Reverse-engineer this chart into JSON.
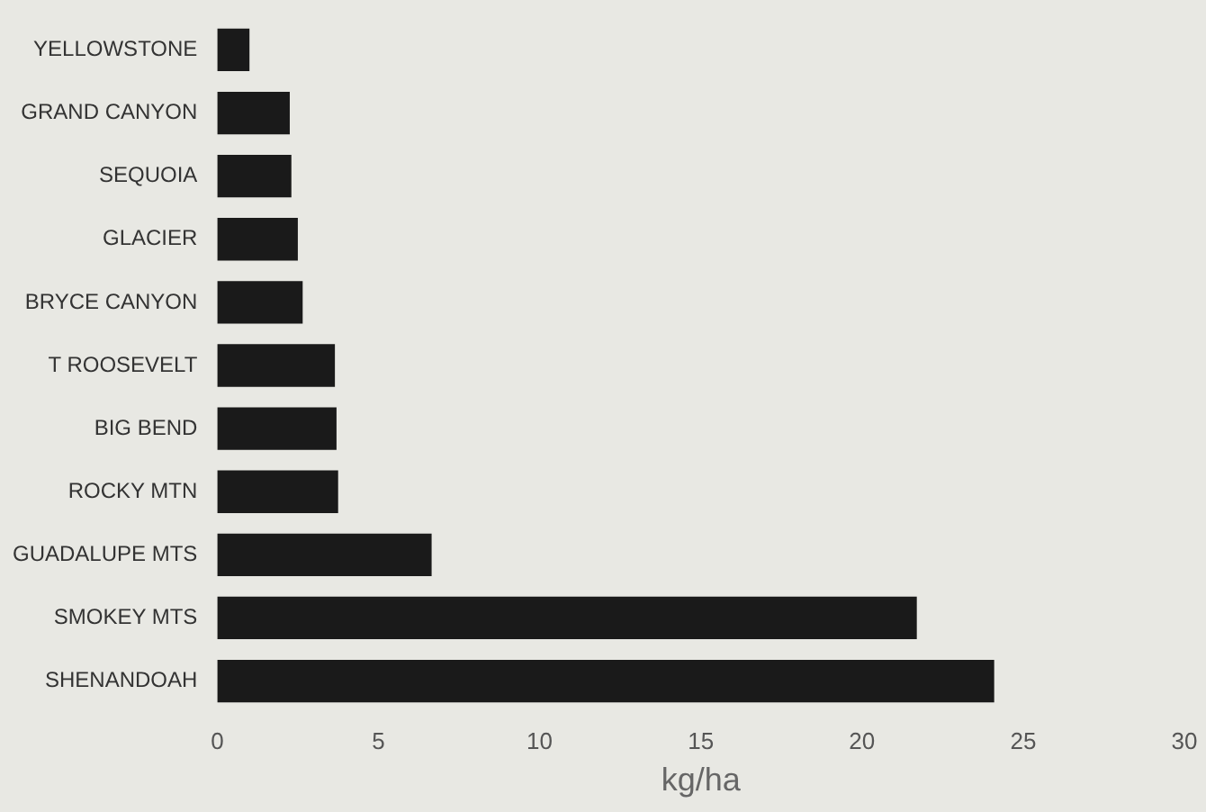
{
  "chart_data": {
    "type": "bar",
    "orientation": "horizontal",
    "xlabel": "kg/ha",
    "categories": [
      "YELLOWSTONE",
      "GRAND CANYON",
      "SEQUOIA",
      "GLACIER",
      "BRYCE CANYON",
      "T ROOSEVELT",
      "BIG BEND",
      "ROCKY MTN",
      "GUADALUPE MTS",
      "SMOKEY MTS",
      "SHENANDOAH"
    ],
    "values": [
      1.0,
      2.25,
      2.3,
      2.5,
      2.65,
      3.65,
      3.7,
      3.75,
      6.65,
      21.7,
      24.1
    ],
    "color": "#1a1a1a",
    "xlim": [
      0,
      30
    ],
    "xticks": [
      0,
      5,
      10,
      15,
      20,
      25,
      30
    ],
    "grid": false,
    "legend": false
  }
}
